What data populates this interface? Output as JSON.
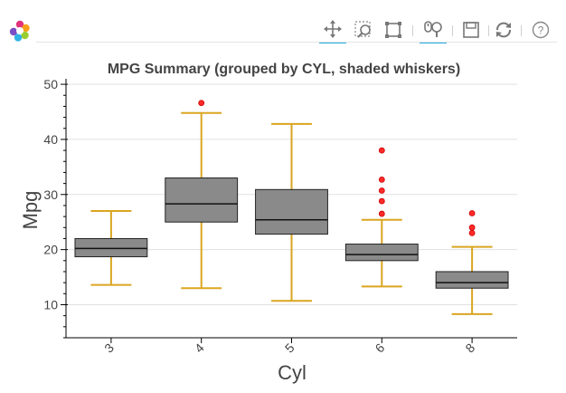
{
  "toolbar": {
    "tools": [
      {
        "name": "pan-tool",
        "active": true
      },
      {
        "name": "box-zoom-tool",
        "active": false
      },
      {
        "name": "box-select-tool",
        "active": false
      },
      {
        "name": "wheel-zoom-tool",
        "active": true
      },
      {
        "name": "save-tool",
        "active": false
      },
      {
        "name": "reset-tool",
        "active": false
      },
      {
        "name": "help-tool",
        "active": false
      }
    ]
  },
  "chart_data": {
    "type": "box",
    "title": "MPG Summary (grouped by CYL, shaded whiskers)",
    "xlabel": "Cyl",
    "ylabel": "Mpg",
    "categories": [
      "3",
      "4",
      "5",
      "6",
      "8"
    ],
    "yticks": [
      10,
      20,
      30,
      40,
      50
    ],
    "ylim": [
      4,
      51
    ],
    "grid": true,
    "colors": {
      "box": "#8a8a8a",
      "whisker": "#daa520",
      "outlier": "#ff2a2a",
      "grid": "#e0e0e0"
    },
    "boxes": [
      {
        "category": "3",
        "lower": 13.6,
        "q1": 18.7,
        "median": 20.2,
        "q3": 22.0,
        "upper": 27.0,
        "outliers": []
      },
      {
        "category": "4",
        "lower": 13.0,
        "q1": 25.0,
        "median": 28.3,
        "q3": 33.0,
        "upper": 44.8,
        "outliers": [
          46.6
        ]
      },
      {
        "category": "5",
        "lower": 10.7,
        "q1": 22.8,
        "median": 25.4,
        "q3": 30.9,
        "upper": 42.8,
        "outliers": []
      },
      {
        "category": "6",
        "lower": 13.3,
        "q1": 18.0,
        "median": 19.1,
        "q3": 21.0,
        "upper": 25.4,
        "outliers": [
          26.5,
          28.8,
          30.7,
          32.7,
          38.0
        ]
      },
      {
        "category": "8",
        "lower": 8.3,
        "q1": 13.0,
        "median": 14.0,
        "q3": 16.0,
        "upper": 20.5,
        "outliers": [
          23.0,
          24.0,
          26.6
        ]
      }
    ]
  }
}
